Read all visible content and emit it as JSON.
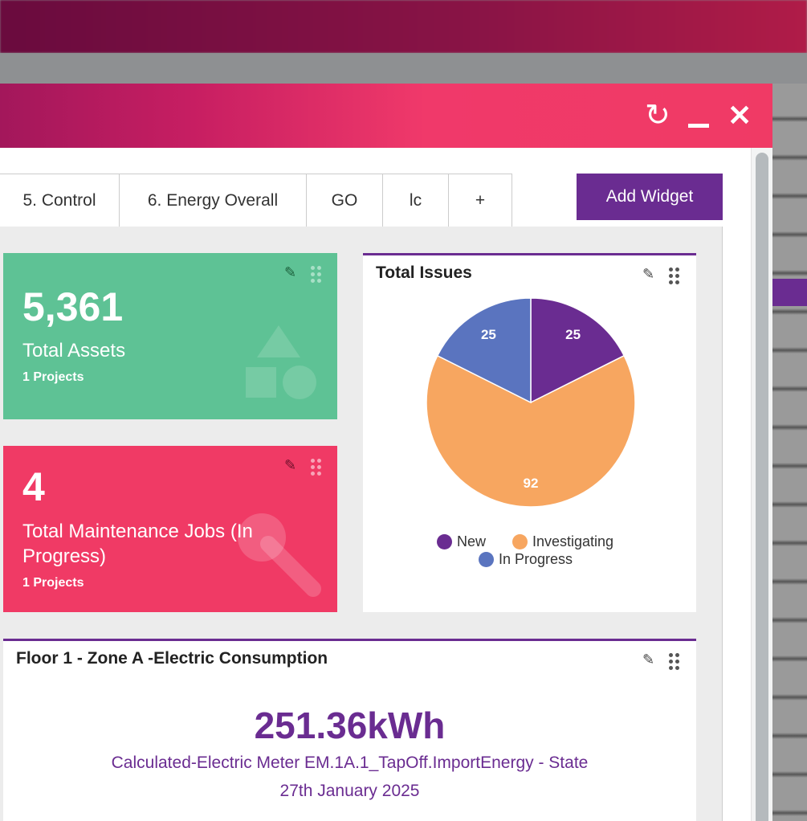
{
  "window": {
    "icons": [
      "refresh-icon",
      "minimize-icon",
      "close-icon"
    ]
  },
  "tabs": [
    {
      "label": "5. Control"
    },
    {
      "label": "6. Energy Overall"
    },
    {
      "label": "GO"
    },
    {
      "label": "lc"
    },
    {
      "label": "+"
    }
  ],
  "toolbar": {
    "add_widget": "Add Widget"
  },
  "widgets": {
    "assets": {
      "value": "5,361",
      "label": "Total Assets",
      "sub": "1 Projects",
      "color": "#5ec295"
    },
    "maintenance": {
      "value": "4",
      "label": "Total Maintenance Jobs (In Progress)",
      "sub": "1 Projects",
      "color": "#f03a65"
    },
    "issues": {
      "title": "Total Issues"
    },
    "consumption": {
      "title": "Floor 1 - Zone A -Electric Consumption",
      "value": "251.36kWh",
      "source": "Calculated-Electric Meter EM.1A.1_TapOff.ImportEnergy - State",
      "date": "27th January 2025"
    }
  },
  "chart_data": {
    "type": "pie",
    "title": "Total Issues",
    "categories": [
      "New",
      "Investigating",
      "In Progress"
    ],
    "values": [
      25,
      92,
      25
    ],
    "colors": [
      "#6a2c91",
      "#f7a660",
      "#5a74bf"
    ],
    "legend": "bottom"
  },
  "colors": {
    "accent": "#6a2c91",
    "header": "#f03a65"
  }
}
